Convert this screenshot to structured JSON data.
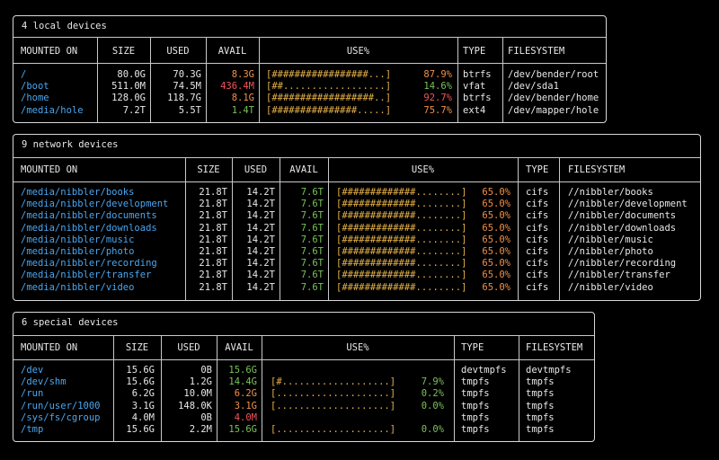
{
  "headers": {
    "mounted": "MOUNTED ON",
    "size": "SIZE",
    "used": "USED",
    "avail": "AVAIL",
    "use": "USE%",
    "type": "TYPE",
    "fs": "FILESYSTEM"
  },
  "local": {
    "title": "4 local devices",
    "rows": [
      {
        "mount": "/",
        "size": "80.0G",
        "used": "70.3G",
        "avail": "8.3G",
        "availc": "orange",
        "bar": "[#################...]",
        "pct": "87.9%",
        "pctc": "orange",
        "type": "btrfs",
        "fs": "/dev/bender/root"
      },
      {
        "mount": "/boot",
        "size": "511.0M",
        "used": "74.5M",
        "avail": "436.4M",
        "availc": "red",
        "bar": "[##..................]",
        "pct": "14.6%",
        "pctc": "green",
        "type": "vfat",
        "fs": "/dev/sda1"
      },
      {
        "mount": "/home",
        "size": "128.0G",
        "used": "118.7G",
        "avail": "8.1G",
        "availc": "orange",
        "bar": "[##################..]",
        "pct": "92.7%",
        "pctc": "red",
        "type": "btrfs",
        "fs": "/dev/bender/home"
      },
      {
        "mount": "/media/hole",
        "size": "7.2T",
        "used": "5.5T",
        "avail": "1.4T",
        "availc": "green",
        "bar": "[###############.....]",
        "pct": "75.7%",
        "pctc": "orange",
        "type": "ext4",
        "fs": "/dev/mapper/hole"
      }
    ]
  },
  "network": {
    "title": "9 network devices",
    "rows": [
      {
        "mount": "/media/nibbler/books",
        "size": "21.8T",
        "used": "14.2T",
        "avail": "7.6T",
        "bar": "[#############........]",
        "pct": "65.0%",
        "type": "cifs",
        "fs": "//nibbler/books"
      },
      {
        "mount": "/media/nibbler/development",
        "size": "21.8T",
        "used": "14.2T",
        "avail": "7.6T",
        "bar": "[#############........]",
        "pct": "65.0%",
        "type": "cifs",
        "fs": "//nibbler/development"
      },
      {
        "mount": "/media/nibbler/documents",
        "size": "21.8T",
        "used": "14.2T",
        "avail": "7.6T",
        "bar": "[#############........]",
        "pct": "65.0%",
        "type": "cifs",
        "fs": "//nibbler/documents"
      },
      {
        "mount": "/media/nibbler/downloads",
        "size": "21.8T",
        "used": "14.2T",
        "avail": "7.6T",
        "bar": "[#############........]",
        "pct": "65.0%",
        "type": "cifs",
        "fs": "//nibbler/downloads"
      },
      {
        "mount": "/media/nibbler/music",
        "size": "21.8T",
        "used": "14.2T",
        "avail": "7.6T",
        "bar": "[#############........]",
        "pct": "65.0%",
        "type": "cifs",
        "fs": "//nibbler/music"
      },
      {
        "mount": "/media/nibbler/photo",
        "size": "21.8T",
        "used": "14.2T",
        "avail": "7.6T",
        "bar": "[#############........]",
        "pct": "65.0%",
        "type": "cifs",
        "fs": "//nibbler/photo"
      },
      {
        "mount": "/media/nibbler/recording",
        "size": "21.8T",
        "used": "14.2T",
        "avail": "7.6T",
        "bar": "[#############........]",
        "pct": "65.0%",
        "type": "cifs",
        "fs": "//nibbler/recording"
      },
      {
        "mount": "/media/nibbler/transfer",
        "size": "21.8T",
        "used": "14.2T",
        "avail": "7.6T",
        "bar": "[#############........]",
        "pct": "65.0%",
        "type": "cifs",
        "fs": "//nibbler/transfer"
      },
      {
        "mount": "/media/nibbler/video",
        "size": "21.8T",
        "used": "14.2T",
        "avail": "7.6T",
        "bar": "[#############........]",
        "pct": "65.0%",
        "type": "cifs",
        "fs": "//nibbler/video"
      }
    ]
  },
  "special": {
    "title": "6 special devices",
    "rows": [
      {
        "mount": "/dev",
        "size": "15.6G",
        "used": "0B",
        "avail": "15.6G",
        "availc": "green",
        "bar": "",
        "pct": "",
        "type": "devtmpfs",
        "fs": "devtmpfs"
      },
      {
        "mount": "/dev/shm",
        "size": "15.6G",
        "used": "1.2G",
        "avail": "14.4G",
        "availc": "green",
        "bar": "[#...................]",
        "pct": "7.9%",
        "type": "tmpfs",
        "fs": "tmpfs"
      },
      {
        "mount": "/run",
        "size": "6.2G",
        "used": "10.0M",
        "avail": "6.2G",
        "availc": "orange",
        "bar": "[....................]",
        "pct": "0.2%",
        "type": "tmpfs",
        "fs": "tmpfs"
      },
      {
        "mount": "/run/user/1000",
        "size": "3.1G",
        "used": "148.0K",
        "avail": "3.1G",
        "availc": "orange",
        "bar": "[....................]",
        "pct": "0.0%",
        "type": "tmpfs",
        "fs": "tmpfs"
      },
      {
        "mount": "/sys/fs/cgroup",
        "size": "4.0M",
        "used": "0B",
        "avail": "4.0M",
        "availc": "red",
        "bar": "",
        "pct": "",
        "type": "tmpfs",
        "fs": "tmpfs"
      },
      {
        "mount": "/tmp",
        "size": "15.6G",
        "used": "2.2M",
        "avail": "15.6G",
        "availc": "green",
        "bar": "[....................]",
        "pct": "0.0%",
        "type": "tmpfs",
        "fs": "tmpfs"
      }
    ]
  }
}
